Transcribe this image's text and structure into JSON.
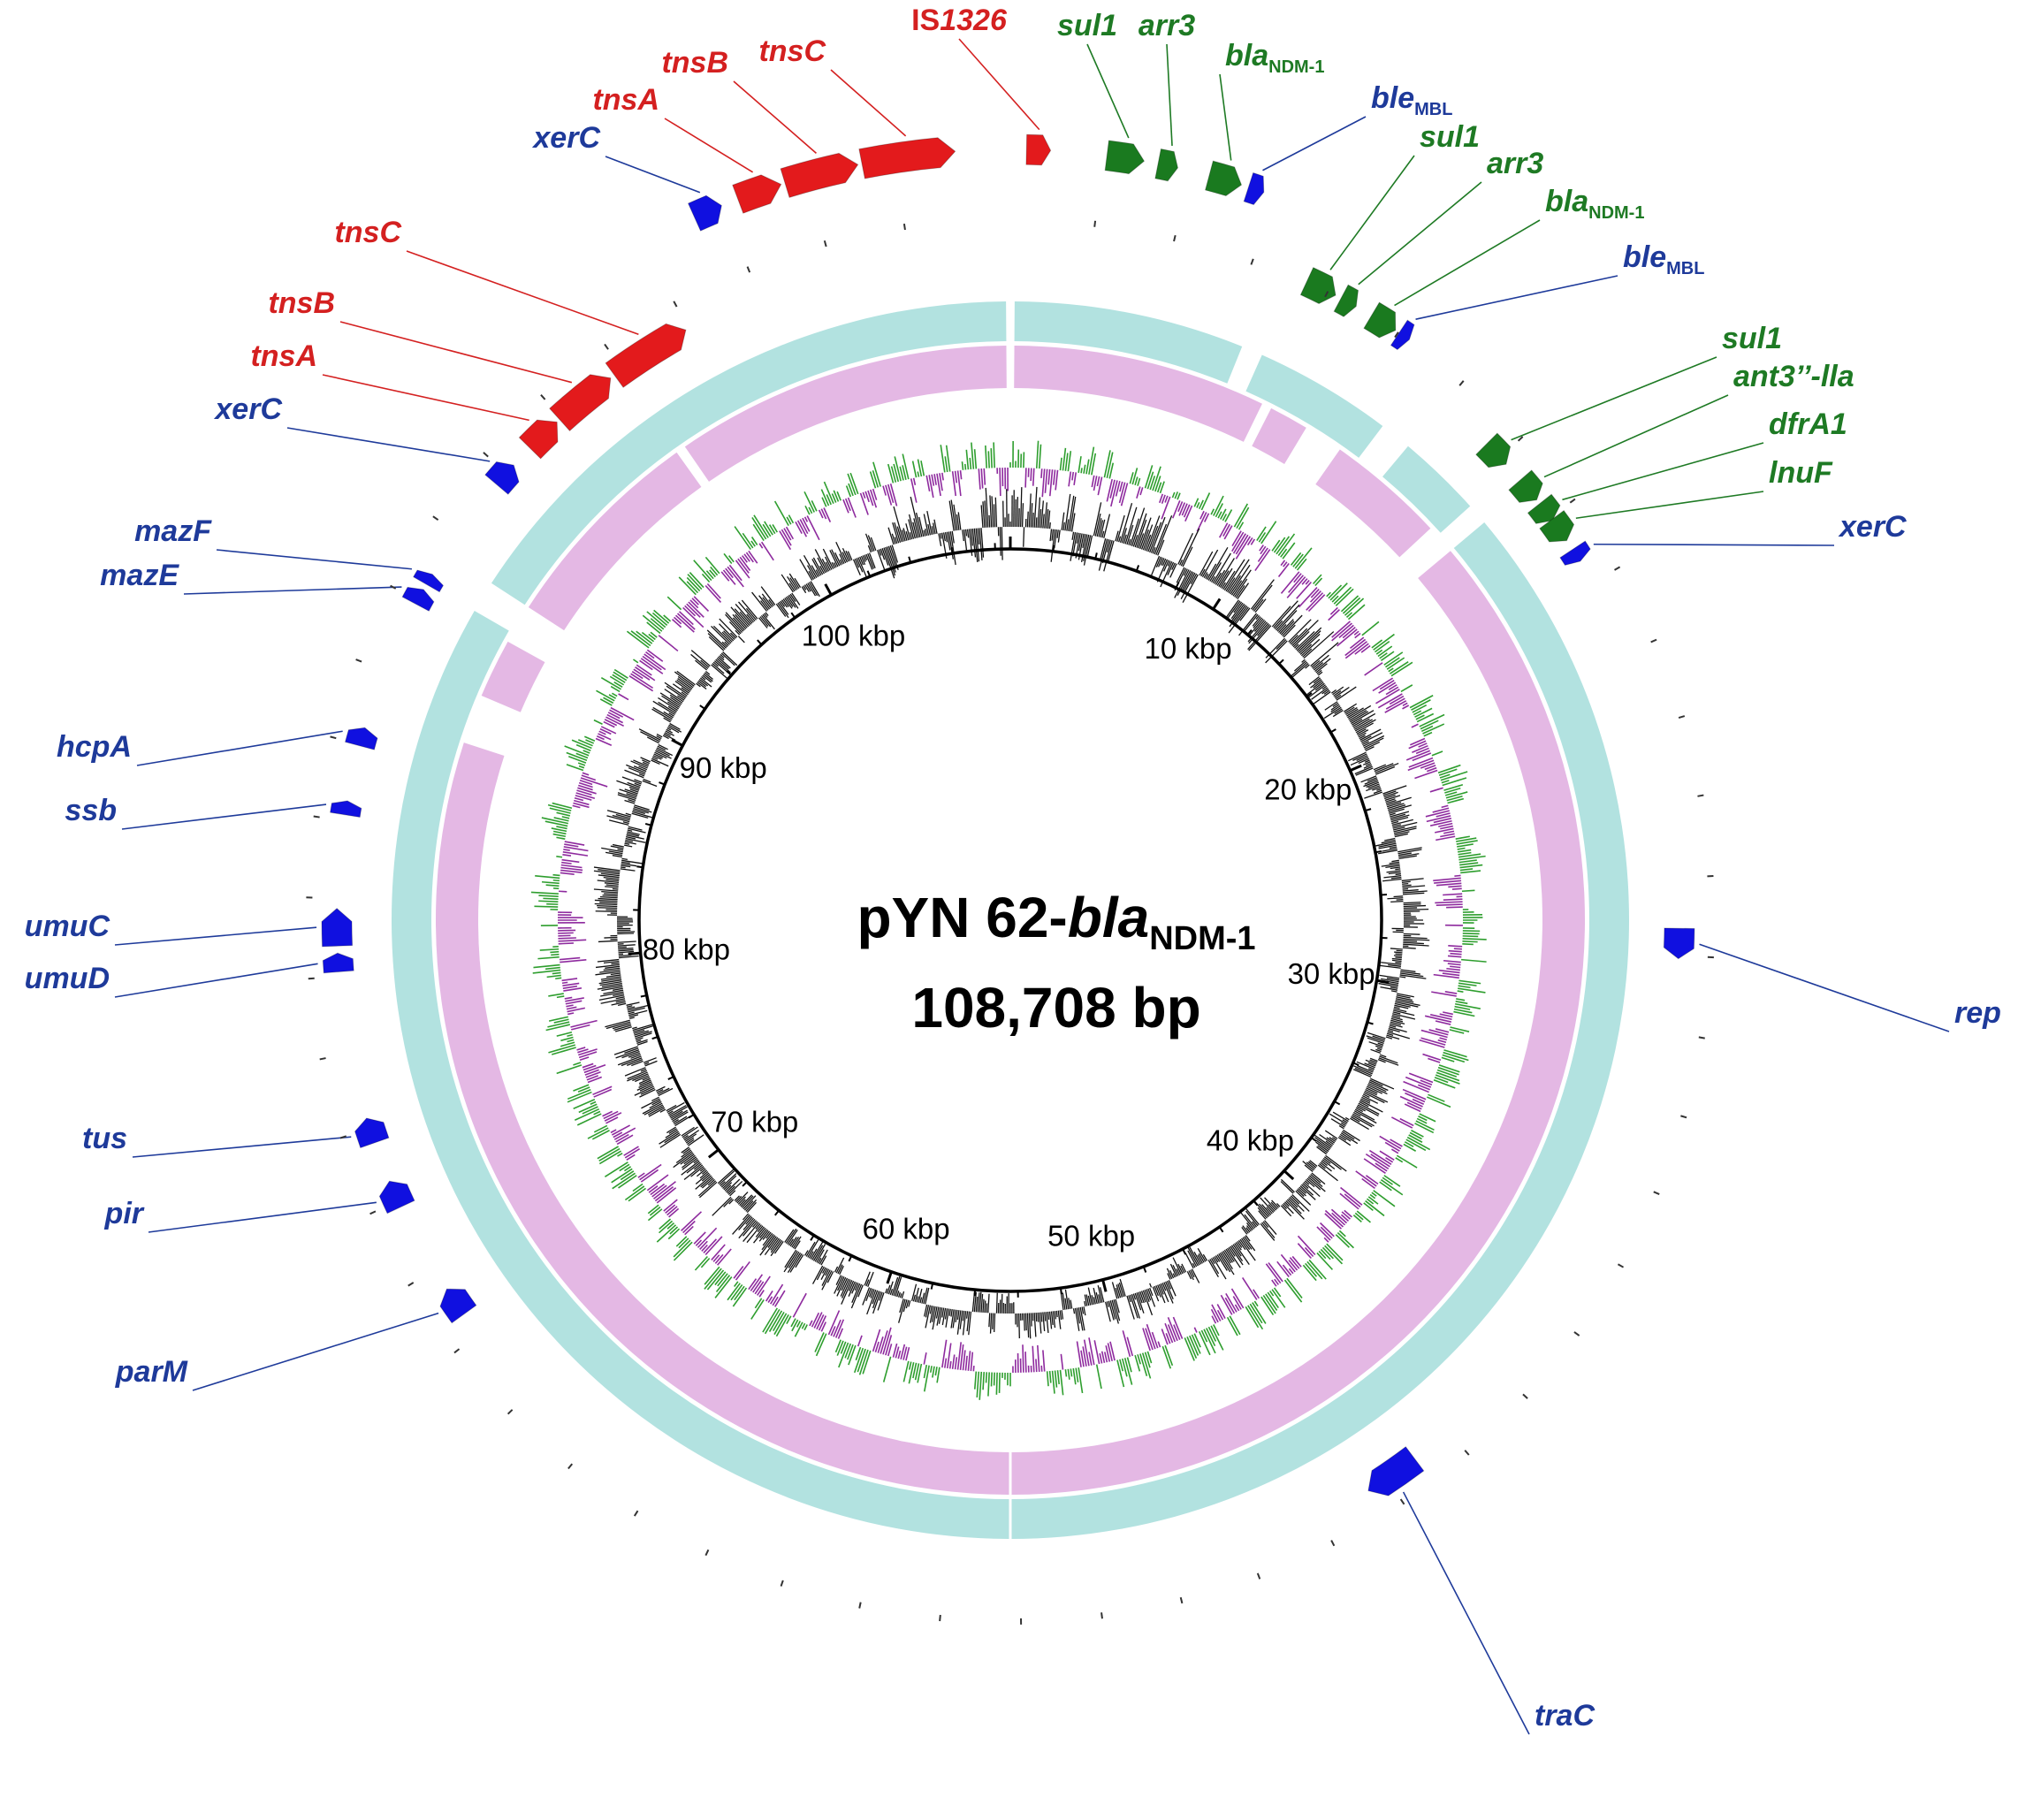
{
  "title": {
    "name_prefix": "pYN 62-",
    "name_italic": "bla",
    "name_sub": "NDM-1",
    "size": "108,708 bp"
  },
  "plasmid_length_bp": 108708,
  "colors": {
    "mobile_element": "#e31a1c",
    "resistance": "#1a7a1f",
    "other": "#1010e0",
    "label_red": "#d42020",
    "label_green": "#1e7a24",
    "label_blue": "#1e3a9a",
    "ring_outer": "#b2e2e0",
    "ring_middle": "#e4b8e4",
    "ring_inner": "#4a46e2",
    "ring_gray": "#9a9a9a",
    "gc_skew_pos": "#2e9e2e",
    "gc_skew_neg": "#8e2a9e",
    "gc_content": "#111111"
  },
  "scale_labels": [
    "10 kbp",
    "20 kbp",
    "30 kbp",
    "40 kbp",
    "50 kbp",
    "60 kbp",
    "70 kbp",
    "80 kbp",
    "90 kbp",
    "100 kbp"
  ],
  "genes": [
    {
      "name": "IS",
      "italic_part": "1326",
      "sub": "",
      "category": "mobile_element"
    },
    {
      "name": "sul1",
      "italic_part": "",
      "sub": "",
      "category": "resistance"
    },
    {
      "name": "arr3",
      "italic_part": "",
      "sub": "",
      "category": "resistance"
    },
    {
      "name": "bla",
      "italic_part": "",
      "sub": "NDM-1",
      "category": "resistance"
    },
    {
      "name": "ble",
      "italic_part": "",
      "sub": "MBL",
      "category": "other"
    },
    {
      "name": "sul1",
      "italic_part": "",
      "sub": "",
      "category": "resistance"
    },
    {
      "name": "arr3",
      "italic_part": "",
      "sub": "",
      "category": "resistance"
    },
    {
      "name": "bla",
      "italic_part": "",
      "sub": "NDM-1",
      "category": "resistance"
    },
    {
      "name": "ble",
      "italic_part": "",
      "sub": "MBL",
      "category": "other"
    },
    {
      "name": "sul1",
      "italic_part": "",
      "sub": "",
      "category": "resistance"
    },
    {
      "name": "ant3’’-lla",
      "italic_part": "",
      "sub": "",
      "category": "resistance"
    },
    {
      "name": "dfrA1",
      "italic_part": "",
      "sub": "",
      "category": "resistance"
    },
    {
      "name": "lnuF",
      "italic_part": "",
      "sub": "",
      "category": "resistance"
    },
    {
      "name": "xerC",
      "italic_part": "",
      "sub": "",
      "category": "other"
    },
    {
      "name": "rep",
      "italic_part": "",
      "sub": "",
      "category": "other"
    },
    {
      "name": "traC",
      "italic_part": "",
      "sub": "",
      "category": "other"
    },
    {
      "name": "parM",
      "italic_part": "",
      "sub": "",
      "category": "other"
    },
    {
      "name": "pir",
      "italic_part": "",
      "sub": "",
      "category": "other"
    },
    {
      "name": "tus",
      "italic_part": "",
      "sub": "",
      "category": "other"
    },
    {
      "name": "umuD",
      "italic_part": "",
      "sub": "",
      "category": "other"
    },
    {
      "name": "umuC",
      "italic_part": "",
      "sub": "",
      "category": "other"
    },
    {
      "name": "ssb",
      "italic_part": "",
      "sub": "",
      "category": "other"
    },
    {
      "name": "hcpA",
      "italic_part": "",
      "sub": "",
      "category": "other"
    },
    {
      "name": "mazE",
      "italic_part": "",
      "sub": "",
      "category": "other"
    },
    {
      "name": "mazF",
      "italic_part": "",
      "sub": "",
      "category": "other"
    },
    {
      "name": "xerC",
      "italic_part": "",
      "sub": "",
      "category": "other"
    },
    {
      "name": "tnsA",
      "italic_part": "",
      "sub": "",
      "category": "mobile_element"
    },
    {
      "name": "tnsB",
      "italic_part": "",
      "sub": "",
      "category": "mobile_element"
    },
    {
      "name": "tnsC",
      "italic_part": "",
      "sub": "",
      "category": "mobile_element"
    },
    {
      "name": "xerC",
      "italic_part": "",
      "sub": "",
      "category": "other"
    },
    {
      "name": "tnsA",
      "italic_part": "",
      "sub": "",
      "category": "mobile_element"
    },
    {
      "name": "tnsB",
      "italic_part": "",
      "sub": "",
      "category": "mobile_element"
    },
    {
      "name": "tnsC",
      "italic_part": "",
      "sub": "",
      "category": "mobile_element"
    }
  ]
}
